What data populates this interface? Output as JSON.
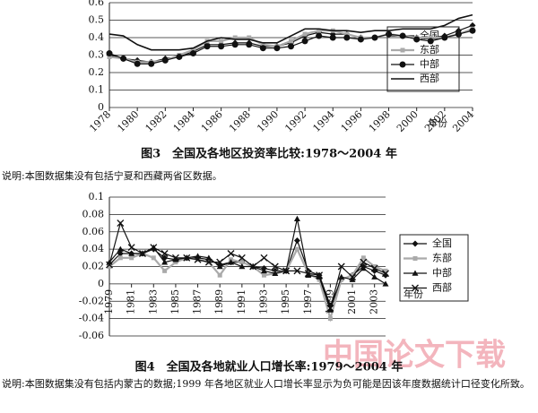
{
  "chart_data": [
    {
      "type": "line",
      "title": "图3　全国及各地区投资率比较:1978～2004 年",
      "xlabel": "年份",
      "x": [
        1978,
        1979,
        1980,
        1981,
        1982,
        1983,
        1984,
        1985,
        1986,
        1987,
        1988,
        1989,
        1990,
        1991,
        1992,
        1993,
        1994,
        1995,
        1996,
        1997,
        1998,
        1999,
        2000,
        2001,
        2002,
        2003,
        2004
      ],
      "xticks": [
        1978,
        1980,
        1982,
        1984,
        1986,
        1988,
        1990,
        1992,
        1994,
        1996,
        1998,
        2000,
        2002,
        2004
      ],
      "xlim": [
        1978,
        2004
      ],
      "ylim": [
        0,
        0.6
      ],
      "yticks": [
        0,
        0.1,
        0.2,
        0.3,
        0.4,
        0.5,
        0.6
      ],
      "grid": true,
      "series": [
        {
          "name": "全国",
          "color": "#111111",
          "marker": "diamond",
          "values": [
            0.3,
            0.28,
            0.27,
            0.26,
            0.28,
            0.29,
            0.32,
            0.36,
            0.36,
            0.37,
            0.37,
            0.35,
            0.35,
            0.37,
            0.41,
            0.43,
            0.42,
            0.42,
            0.4,
            0.4,
            0.42,
            0.41,
            0.4,
            0.4,
            0.41,
            0.44,
            0.47
          ]
        },
        {
          "name": "东部",
          "color": "#aaaaaa",
          "marker": "square",
          "values": [
            0.29,
            0.28,
            0.26,
            0.26,
            0.27,
            0.3,
            0.33,
            0.38,
            0.38,
            0.4,
            0.4,
            0.36,
            0.35,
            0.38,
            0.42,
            0.44,
            0.44,
            0.42,
            0.4,
            0.4,
            0.42,
            0.41,
            0.4,
            0.4,
            0.4,
            0.42,
            0.45
          ]
        },
        {
          "name": "中部",
          "color": "#111111",
          "marker": "circle",
          "values": [
            0.31,
            0.28,
            0.25,
            0.25,
            0.27,
            0.29,
            0.31,
            0.35,
            0.35,
            0.36,
            0.36,
            0.34,
            0.34,
            0.35,
            0.38,
            0.41,
            0.4,
            0.4,
            0.39,
            0.4,
            0.42,
            0.41,
            0.39,
            0.38,
            0.4,
            0.42,
            0.44
          ]
        },
        {
          "name": "西部",
          "color": "#111111",
          "marker": "none",
          "values": [
            0.42,
            0.41,
            0.36,
            0.33,
            0.33,
            0.33,
            0.34,
            0.38,
            0.4,
            0.39,
            0.39,
            0.37,
            0.37,
            0.41,
            0.45,
            0.45,
            0.44,
            0.44,
            0.43,
            0.44,
            0.44,
            0.45,
            0.45,
            0.45,
            0.47,
            0.51,
            0.53
          ]
        }
      ]
    },
    {
      "type": "line",
      "title": "图4　全国及各地就业人口增长率:1979～2004 年",
      "xlabel": "年份",
      "x": [
        1979,
        1980,
        1981,
        1982,
        1983,
        1984,
        1985,
        1986,
        1987,
        1988,
        1989,
        1990,
        1991,
        1992,
        1993,
        1994,
        1995,
        1996,
        1997,
        1998,
        1999,
        2000,
        2001,
        2002,
        2003,
        2004
      ],
      "xticks": [
        1979,
        1981,
        1983,
        1985,
        1987,
        1989,
        1991,
        1993,
        1995,
        1997,
        1999,
        2001,
        2003
      ],
      "xlim": [
        1979,
        2004
      ],
      "ylim": [
        -0.06,
        0.1
      ],
      "yticks": [
        -0.06,
        -0.04,
        -0.02,
        0,
        0.02,
        0.04,
        0.06,
        0.08,
        0.1
      ],
      "grid": true,
      "series": [
        {
          "name": "全国",
          "color": "#111111",
          "marker": "diamond",
          "values": [
            0.022,
            0.035,
            0.035,
            0.035,
            0.04,
            0.03,
            0.028,
            0.03,
            0.03,
            0.028,
            0.022,
            0.025,
            0.025,
            0.02,
            0.018,
            0.015,
            0.015,
            0.05,
            0.015,
            0.01,
            -0.025,
            0.005,
            0.01,
            0.02,
            0.015,
            0.01
          ]
        },
        {
          "name": "东部",
          "color": "#aaaaaa",
          "marker": "square",
          "values": [
            0.02,
            0.03,
            0.03,
            0.035,
            0.03,
            0.015,
            0.025,
            0.03,
            0.028,
            0.025,
            0.01,
            0.028,
            0.025,
            0.02,
            0.01,
            0.012,
            0.015,
            0.04,
            0.012,
            0.005,
            -0.04,
            0.005,
            0.01,
            0.03,
            0.02,
            0.015
          ]
        },
        {
          "name": "中部",
          "color": "#111111",
          "marker": "triangle",
          "values": [
            0.025,
            0.04,
            0.035,
            0.035,
            0.042,
            0.025,
            0.028,
            0.03,
            0.032,
            0.03,
            0.02,
            0.025,
            0.02,
            0.02,
            0.015,
            0.012,
            0.015,
            0.075,
            0.01,
            0.008,
            -0.03,
            0.008,
            0.005,
            0.018,
            0.008,
            0.0
          ]
        },
        {
          "name": "西部",
          "color": "#111111",
          "marker": "cross",
          "values": [
            0.022,
            0.07,
            0.042,
            0.035,
            0.042,
            0.035,
            0.03,
            0.03,
            0.028,
            0.025,
            0.025,
            0.035,
            0.03,
            0.02,
            0.03,
            0.02,
            0.015,
            0.015,
            0.012,
            0.01,
            -0.028,
            0.02,
            0.008,
            0.025,
            0.018,
            0.012
          ]
        }
      ]
    }
  ],
  "notes": [
    "说明:本图数据集没有包括宁夏和西藏两省区数据。",
    "说明:本图数据集没有包括内蒙古的数据;1999 年各地区就业人口增长率显示为负可能是因该年度数据统计口径变化所致。"
  ],
  "watermark": "中国论文下载"
}
